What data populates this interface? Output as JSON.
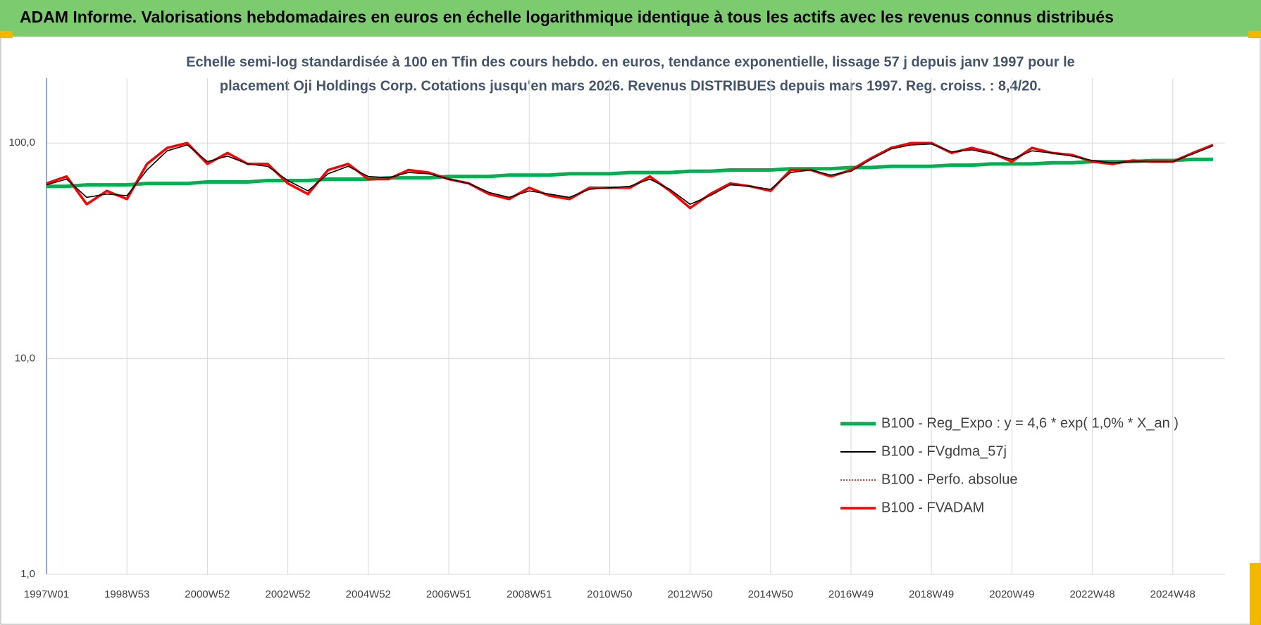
{
  "header": {
    "title": "ADAM Informe. Valorisations hebdomadaires en euros en échelle logarithmique identique à tous les actifs avec les revenus connus distribués"
  },
  "chart_data": {
    "type": "line",
    "title": [
      "Echelle semi-log standardisée à 100 en Tfin des cours hebdo. en euros, tendance exponentielle, lissage 57 j depuis janv 1997 pour le",
      "placement Oji Holdings Corp. Cotations jusqu'en mars 2026.  Revenus DISTRIBUES depuis mars 1997. Reg. croiss. : 8,4/20."
    ],
    "categories": [
      "1997W01",
      null,
      null,
      null,
      "1998W53",
      null,
      null,
      null,
      "2000W52",
      null,
      null,
      null,
      "2002W52",
      null,
      null,
      null,
      "2004W52",
      null,
      null,
      null,
      "2006W51",
      null,
      null,
      null,
      "2008W51",
      null,
      null,
      null,
      "2010W50",
      null,
      null,
      null,
      "2012W50",
      null,
      null,
      null,
      "2014W50",
      null,
      null,
      null,
      "2016W49",
      null,
      null,
      null,
      "2018W49",
      null,
      null,
      null,
      "2020W49",
      null,
      null,
      null,
      "2022W48",
      null,
      null,
      null,
      "2024W48",
      null,
      null
    ],
    "log_scale": true,
    "ylim": [
      1,
      200
    ],
    "yticks": [
      {
        "value": 1,
        "label": "1,0"
      },
      {
        "value": 10,
        "label": "10,0"
      },
      {
        "value": 100,
        "label": "100,0"
      }
    ],
    "grid": true,
    "legend": "lower right",
    "series": [
      {
        "name": "B100 - Reg_Expo : y = 4,6 * exp( 1,0% *  X_an )",
        "color": "#00b050",
        "style": "solid",
        "values": [
          63,
          63,
          64,
          64,
          64,
          65,
          65,
          65,
          66,
          66,
          66,
          67,
          67,
          67,
          68,
          68,
          68,
          69,
          69,
          69,
          70,
          70,
          70,
          71,
          71,
          71,
          72,
          72,
          72,
          73,
          73,
          73,
          74,
          74,
          75,
          75,
          75,
          76,
          76,
          76,
          77,
          77,
          78,
          78,
          78,
          79,
          79,
          80,
          80,
          80,
          81,
          81,
          82,
          82,
          82,
          83,
          83,
          84,
          84
        ]
      },
      {
        "name": "B100 - FVgdma_57j",
        "color": "#000000",
        "style": "solid",
        "values": [
          64,
          68,
          56,
          58,
          57,
          75,
          92,
          98,
          82,
          87,
          80,
          78,
          67,
          60,
          72,
          78,
          70,
          69,
          73,
          72,
          68,
          65,
          59,
          56,
          60,
          58,
          56,
          61,
          62,
          63,
          68,
          61,
          52,
          57,
          64,
          63,
          61,
          73,
          75,
          71,
          74,
          84,
          94,
          98,
          99,
          91,
          93,
          89,
          84,
          92,
          90,
          87,
          83,
          81,
          82,
          82,
          82,
          89,
          97
        ]
      },
      {
        "name": "B100 - Perfo. absolue",
        "color": "#c00000",
        "style": "dotted",
        "values": [
          65,
          70,
          52,
          60,
          55,
          80,
          95,
          100,
          80,
          90,
          80,
          80,
          65,
          58,
          75,
          80,
          68,
          68,
          75,
          73,
          68,
          65,
          58,
          55,
          62,
          57,
          55,
          62,
          62,
          62,
          70,
          60,
          50,
          58,
          65,
          63,
          60,
          75,
          75,
          70,
          75,
          85,
          95,
          100,
          100,
          90,
          95,
          90,
          82,
          95,
          90,
          88,
          82,
          80,
          83,
          82,
          82,
          90,
          98
        ]
      },
      {
        "name": "B100 - FVADAM",
        "color": "#ff0000",
        "style": "solid",
        "values": [
          65,
          70,
          52,
          60,
          55,
          80,
          95,
          100,
          80,
          90,
          80,
          80,
          65,
          58,
          75,
          80,
          68,
          68,
          75,
          73,
          68,
          65,
          58,
          55,
          62,
          57,
          55,
          62,
          62,
          62,
          70,
          60,
          50,
          58,
          65,
          63,
          60,
          75,
          75,
          70,
          75,
          85,
          95,
          100,
          100,
          90,
          95,
          90,
          82,
          95,
          90,
          88,
          82,
          80,
          83,
          82,
          82,
          90,
          98
        ]
      }
    ]
  }
}
